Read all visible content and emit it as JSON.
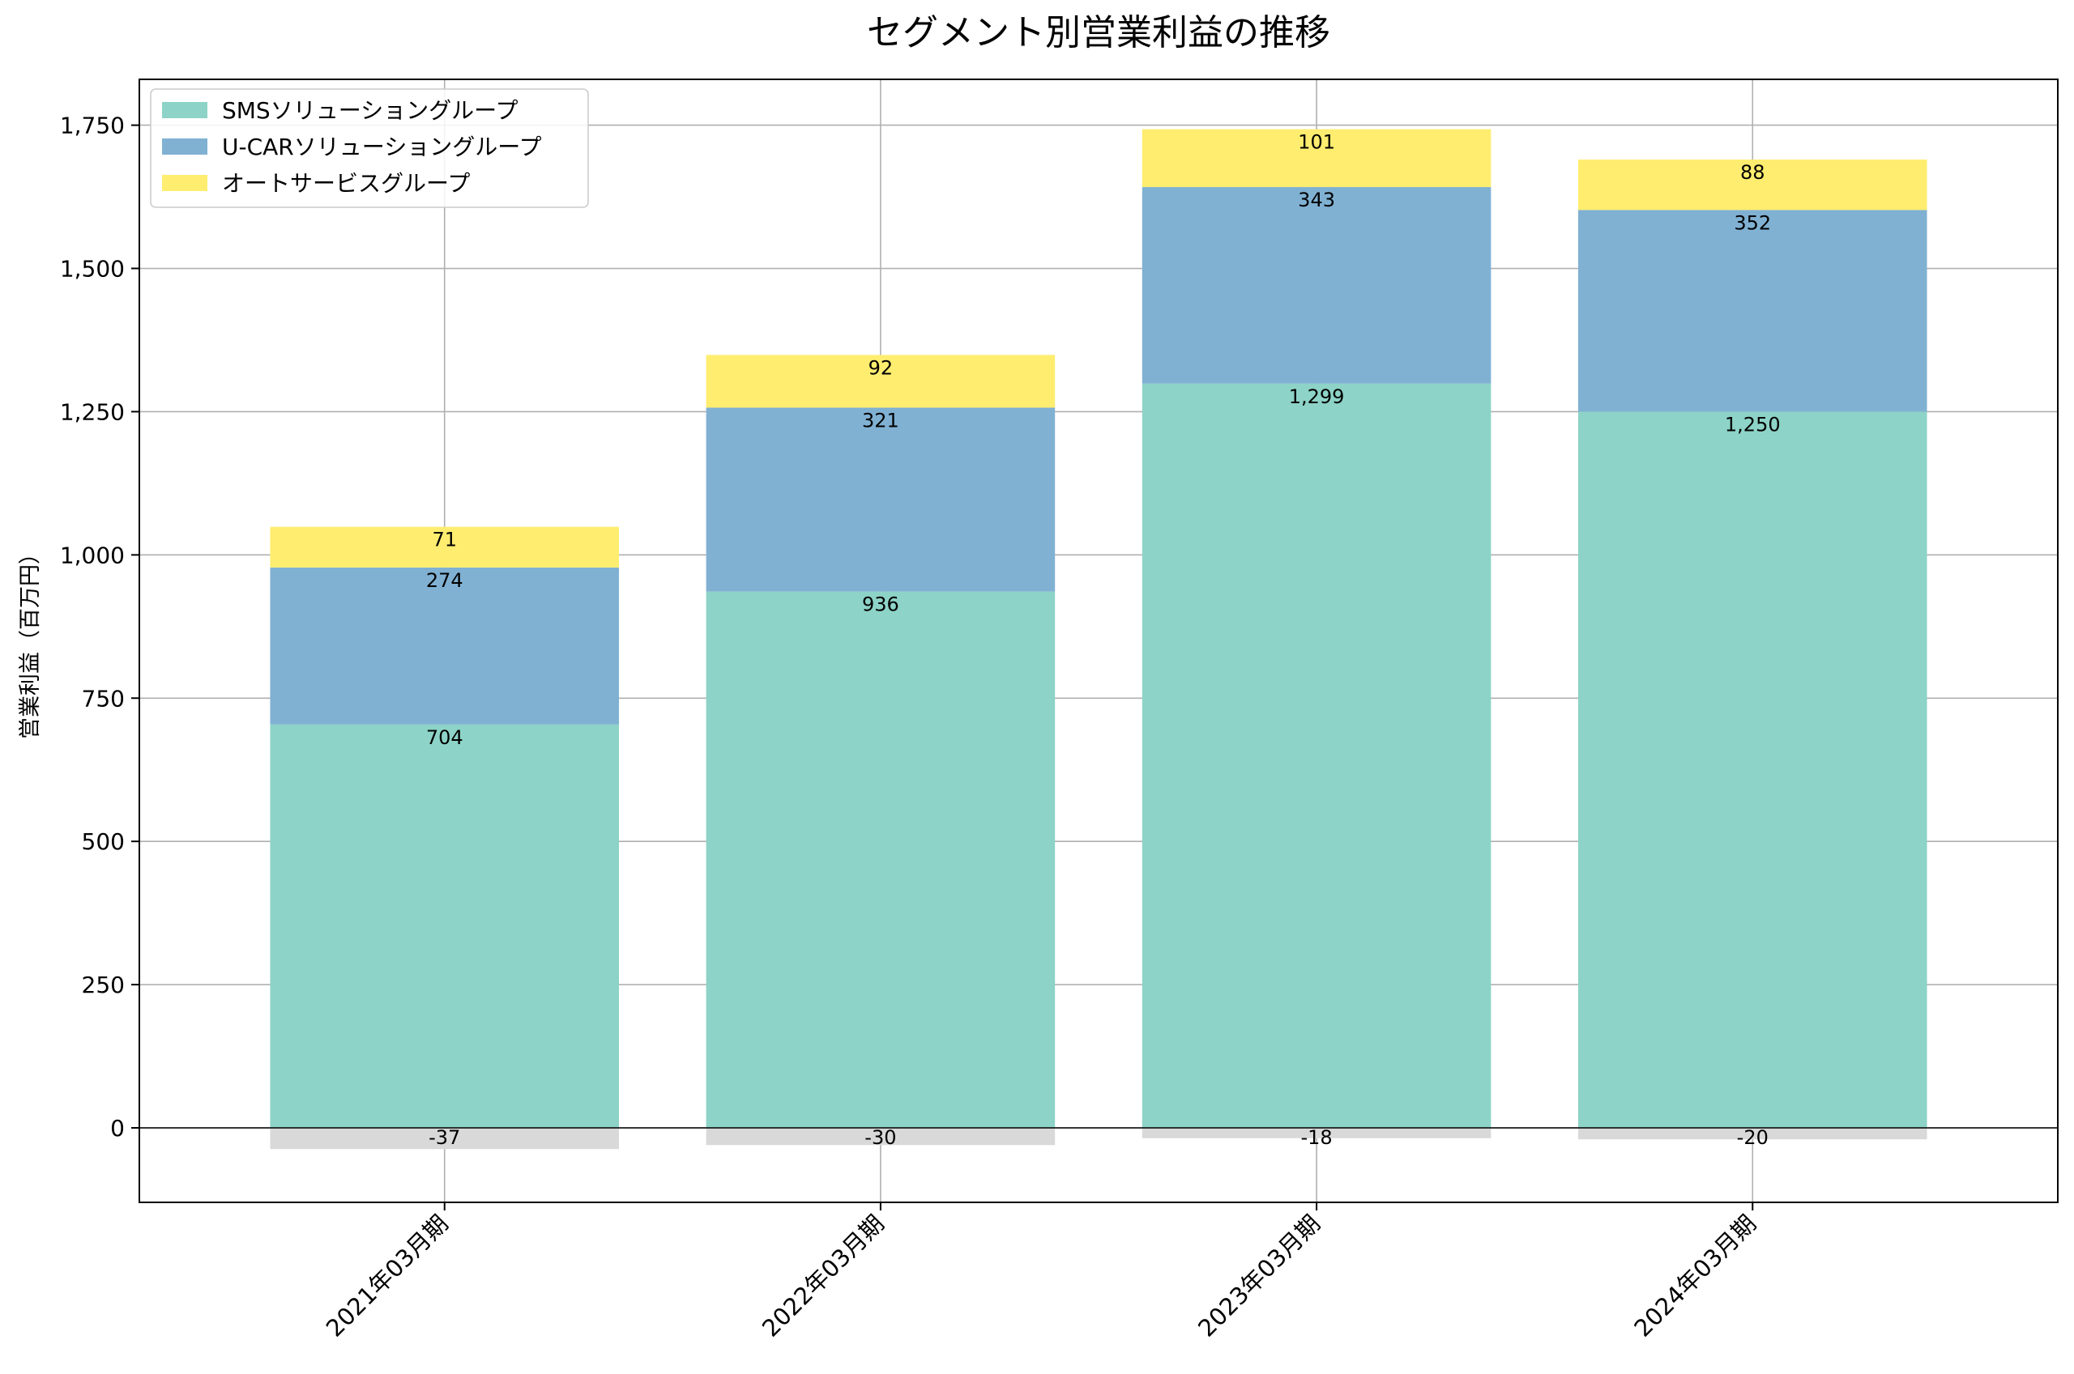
{
  "chart_data": {
    "type": "bar",
    "stacked": true,
    "title": "セグメント別営業利益の推移",
    "xlabel": "",
    "ylabel": "営業利益（百万円）",
    "categories": [
      "2021年03月期",
      "2022年03月期",
      "2023年03月期",
      "2024年03月期"
    ],
    "series": [
      {
        "name": "SMSソリューショングループ",
        "color": "#8dd3c7",
        "values": [
          704,
          936,
          1299,
          1250
        ],
        "labels": [
          "704",
          "936",
          "1,299",
          "1,250"
        ]
      },
      {
        "name": "U-CARソリューショングループ",
        "color": "#80b1d3",
        "values": [
          274,
          321,
          343,
          352
        ],
        "labels": [
          "274",
          "321",
          "343",
          "352"
        ]
      },
      {
        "name": "オートサービスグループ",
        "color": "#ffed6f",
        "values": [
          71,
          92,
          101,
          88
        ],
        "labels": [
          "71",
          "92",
          "101",
          "88"
        ]
      }
    ],
    "negative_series": {
      "name": "",
      "color": "#d9d9d9",
      "values": [
        -37,
        -30,
        -18,
        -20
      ],
      "labels": [
        "-37",
        "-30",
        "-18",
        "-20"
      ]
    },
    "ylim": [
      -130,
      1830
    ],
    "yticks": [
      0,
      250,
      500,
      750,
      1000,
      1250,
      1500,
      1750
    ],
    "ytick_labels": [
      "0",
      "250",
      "500",
      "750",
      "1,000",
      "1,250",
      "1,500",
      "1,750"
    ],
    "grid": true,
    "legend_position": "top-left"
  }
}
